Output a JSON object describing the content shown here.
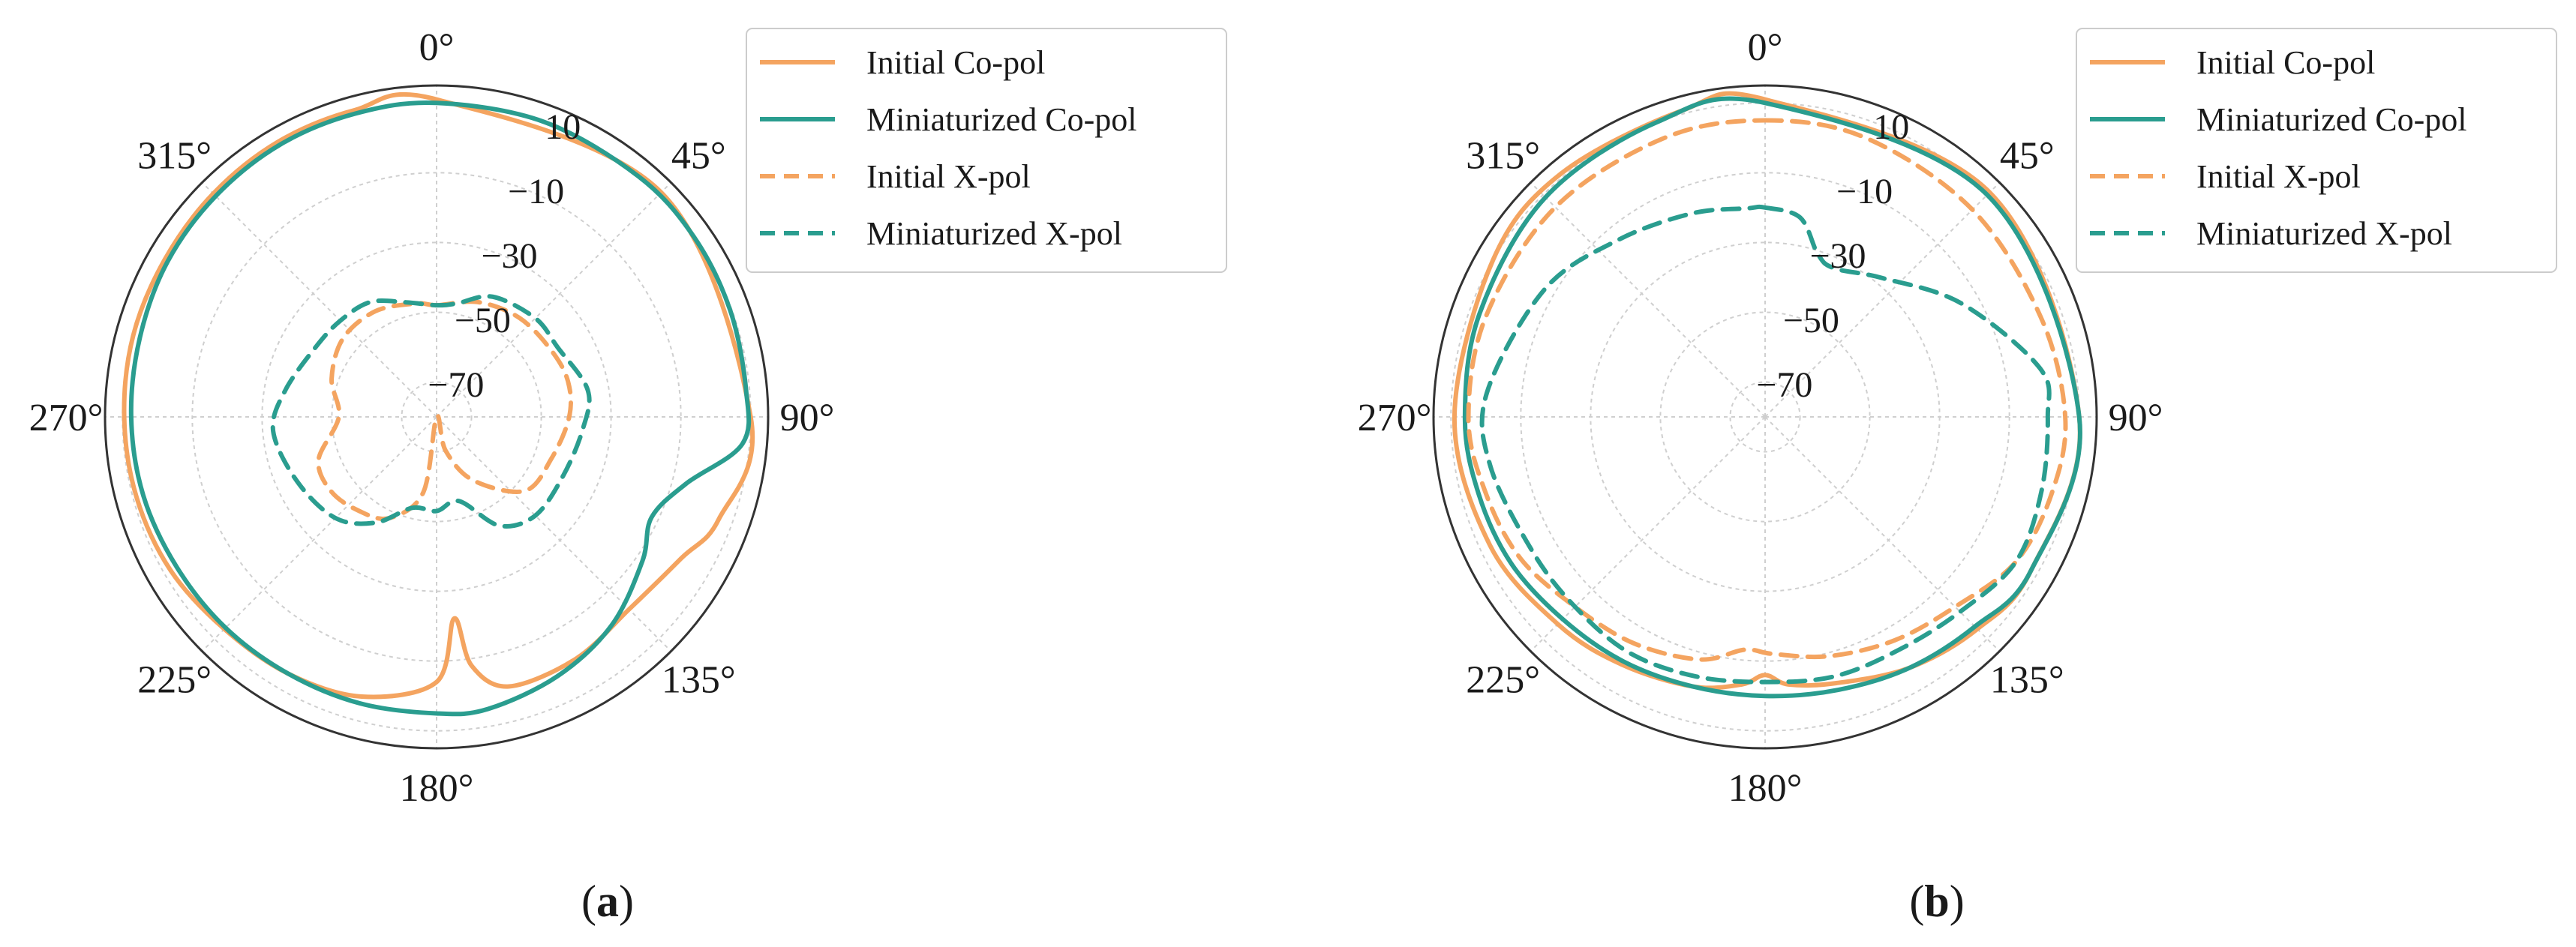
{
  "panels": [
    {
      "caption": "a",
      "legend": [
        "Initial Co-pol",
        "Miniaturized Co-pol",
        "Initial X-pol",
        "Miniaturized X-pol"
      ]
    },
    {
      "caption": "b",
      "legend": [
        "Initial Co-pol",
        "Miniaturized Co-pol",
        "Initial X-pol",
        "Miniaturized X-pol"
      ]
    }
  ],
  "colors": {
    "initial": "#f4a460",
    "miniaturized": "#2a9d8f",
    "grid": "#cfcfcf",
    "frame": "#333333",
    "legend_border": "#cccccc"
  },
  "chart_data": [
    {
      "type": "polar-line",
      "panel": "a",
      "theta_unit": "deg",
      "theta_zero": "top",
      "theta_direction": "clockwise",
      "angle_tick_labels": [
        "0°",
        "45°",
        "90°",
        "135°",
        "180°",
        "225°",
        "270°",
        "315°"
      ],
      "r_ticks": [
        10,
        -10,
        -30,
        -50,
        -70
      ],
      "r_tick_labels": [
        "10",
        "−10",
        "−30",
        "−50",
        "−70"
      ],
      "rlim": [
        -80,
        15
      ],
      "grid": true,
      "legend_placement": "upper-right, outside",
      "series": [
        {
          "name": "Initial Co-pol",
          "style": "solid",
          "color": "#f4a460",
          "points": [
            [
              0,
              11
            ],
            [
              45,
              11
            ],
            [
              90,
              10
            ],
            [
              110,
              6
            ],
            [
              120,
              1
            ],
            [
              135,
              -2
            ],
            [
              150,
              0
            ],
            [
              165,
              0
            ],
            [
              172,
              -8
            ],
            [
              175,
              -22
            ],
            [
              180,
              -4
            ],
            [
              195,
              3
            ],
            [
              210,
              5
            ],
            [
              225,
              6
            ],
            [
              240,
              8
            ],
            [
              255,
              9
            ],
            [
              270,
              9.5
            ],
            [
              285,
              10
            ],
            [
              300,
              10
            ],
            [
              315,
              10.5
            ],
            [
              330,
              11
            ],
            [
              345,
              11
            ]
          ]
        },
        {
          "name": "Miniaturized Co-pol",
          "style": "solid",
          "color": "#2a9d8f",
          "points": [
            [
              0,
              10
            ],
            [
              20,
              10
            ],
            [
              40,
              10
            ],
            [
              55,
              10
            ],
            [
              70,
              9.5
            ],
            [
              85,
              9
            ],
            [
              95,
              8
            ],
            [
              105,
              -6
            ],
            [
              115,
              -12
            ],
            [
              125,
              -8
            ],
            [
              140,
              -2
            ],
            [
              155,
              2
            ],
            [
              170,
              5
            ],
            [
              180,
              5
            ],
            [
              195,
              5
            ],
            [
              210,
              5
            ],
            [
              225,
              5.5
            ],
            [
              240,
              6
            ],
            [
              255,
              7
            ],
            [
              270,
              7.5
            ],
            [
              285,
              8
            ],
            [
              300,
              9
            ],
            [
              315,
              9.5
            ],
            [
              330,
              10
            ],
            [
              345,
              10
            ]
          ]
        },
        {
          "name": "Initial X-pol",
          "style": "dashed",
          "color": "#f4a460",
          "points": [
            [
              0,
              -48
            ],
            [
              20,
              -45
            ],
            [
              40,
              -43
            ],
            [
              60,
              -42
            ],
            [
              75,
              -41
            ],
            [
              90,
              -42
            ],
            [
              110,
              -45
            ],
            [
              130,
              -47
            ],
            [
              150,
              -59
            ],
            [
              165,
              -70
            ],
            [
              178,
              -80
            ],
            [
              190,
              -58
            ],
            [
              205,
              -48
            ],
            [
              220,
              -45
            ],
            [
              235,
              -43
            ],
            [
              250,
              -44
            ],
            [
              270,
              -52
            ],
            [
              290,
              -48
            ],
            [
              310,
              -45
            ],
            [
              330,
              -45
            ],
            [
              350,
              -47
            ]
          ]
        },
        {
          "name": "Miniaturized X-pol",
          "style": "dashed",
          "color": "#2a9d8f",
          "points": [
            [
              0,
              -48
            ],
            [
              10,
              -47
            ],
            [
              25,
              -42
            ],
            [
              45,
              -40
            ],
            [
              60,
              -40
            ],
            [
              80,
              -36
            ],
            [
              95,
              -38
            ],
            [
              115,
              -40
            ],
            [
              135,
              -40
            ],
            [
              150,
              -44
            ],
            [
              165,
              -55
            ],
            [
              180,
              -53
            ],
            [
              195,
              -53
            ],
            [
              210,
              -45
            ],
            [
              225,
              -39
            ],
            [
              245,
              -36
            ],
            [
              265,
              -33
            ],
            [
              280,
              -36
            ],
            [
              300,
              -40
            ],
            [
              315,
              -41
            ],
            [
              330,
              -42
            ],
            [
              345,
              -46
            ]
          ]
        }
      ]
    },
    {
      "type": "polar-line",
      "panel": "b",
      "theta_unit": "deg",
      "theta_zero": "top",
      "theta_direction": "clockwise",
      "angle_tick_labels": [
        "0°",
        "45°",
        "90°",
        "135°",
        "180°",
        "225°",
        "270°",
        "315°"
      ],
      "r_ticks": [
        10,
        -10,
        -30,
        -50,
        -70
      ],
      "r_tick_labels": [
        "10",
        "−10",
        "−30",
        "−50",
        "−70"
      ],
      "rlim": [
        -80,
        15
      ],
      "grid": true,
      "legend_placement": "upper-right, outside",
      "series": [
        {
          "name": "Initial Co-pol",
          "style": "solid",
          "color": "#f4a460",
          "points": [
            [
              0,
              11
            ],
            [
              45,
              11
            ],
            [
              90,
              10
            ],
            [
              120,
              8
            ],
            [
              135,
              6
            ],
            [
              150,
              3
            ],
            [
              165,
              -1
            ],
            [
              175,
              -3
            ],
            [
              180,
              -6
            ],
            [
              185,
              -3
            ],
            [
              195,
              0
            ],
            [
              210,
              2
            ],
            [
              225,
              4
            ],
            [
              245,
              7
            ],
            [
              270,
              9
            ],
            [
              300,
              10
            ],
            [
              320,
              11
            ],
            [
              345,
              11
            ]
          ]
        },
        {
          "name": "Miniaturized Co-pol",
          "style": "solid",
          "color": "#2a9d8f",
          "points": [
            [
              0,
              10
            ],
            [
              45,
              10
            ],
            [
              90,
              10
            ],
            [
              120,
              8
            ],
            [
              135,
              5
            ],
            [
              150,
              3
            ],
            [
              165,
              1
            ],
            [
              180,
              0
            ],
            [
              195,
              0
            ],
            [
              210,
              1
            ],
            [
              225,
              2
            ],
            [
              240,
              4
            ],
            [
              255,
              5
            ],
            [
              270,
              6
            ],
            [
              290,
              7
            ],
            [
              315,
              9
            ],
            [
              340,
              10
            ]
          ]
        },
        {
          "name": "Initial X-pol",
          "style": "dashed",
          "color": "#f4a460",
          "points": [
            [
              0,
              5
            ],
            [
              20,
              5
            ],
            [
              45,
              4
            ],
            [
              70,
              4
            ],
            [
              90,
              6
            ],
            [
              105,
              5
            ],
            [
              120,
              3
            ],
            [
              135,
              -3
            ],
            [
              150,
              -6
            ],
            [
              165,
              -9
            ],
            [
              178,
              -12
            ],
            [
              185,
              -13
            ],
            [
              195,
              -8
            ],
            [
              210,
              -5
            ],
            [
              225,
              -3
            ],
            [
              240,
              1
            ],
            [
              255,
              3
            ],
            [
              270,
              5
            ],
            [
              290,
              5
            ],
            [
              315,
              5
            ],
            [
              340,
              5
            ]
          ]
        },
        {
          "name": "Miniaturized X-pol",
          "style": "dashed",
          "color": "#2a9d8f",
          "points": [
            [
              0,
              -20
            ],
            [
              10,
              -22
            ],
            [
              18,
              -31
            ],
            [
              25,
              -33
            ],
            [
              40,
              -28
            ],
            [
              60,
              -15
            ],
            [
              80,
              0
            ],
            [
              90,
              1
            ],
            [
              105,
              2
            ],
            [
              120,
              3
            ],
            [
              135,
              -1
            ],
            [
              150,
              -3
            ],
            [
              165,
              -3
            ],
            [
              180,
              -4
            ],
            [
              195,
              -3
            ],
            [
              210,
              -2
            ],
            [
              225,
              -3
            ],
            [
              240,
              -3
            ],
            [
              260,
              0
            ],
            [
              275,
              0
            ],
            [
              300,
              -7
            ],
            [
              320,
              -14
            ],
            [
              340,
              -18
            ],
            [
              355,
              -20
            ]
          ]
        }
      ]
    }
  ]
}
